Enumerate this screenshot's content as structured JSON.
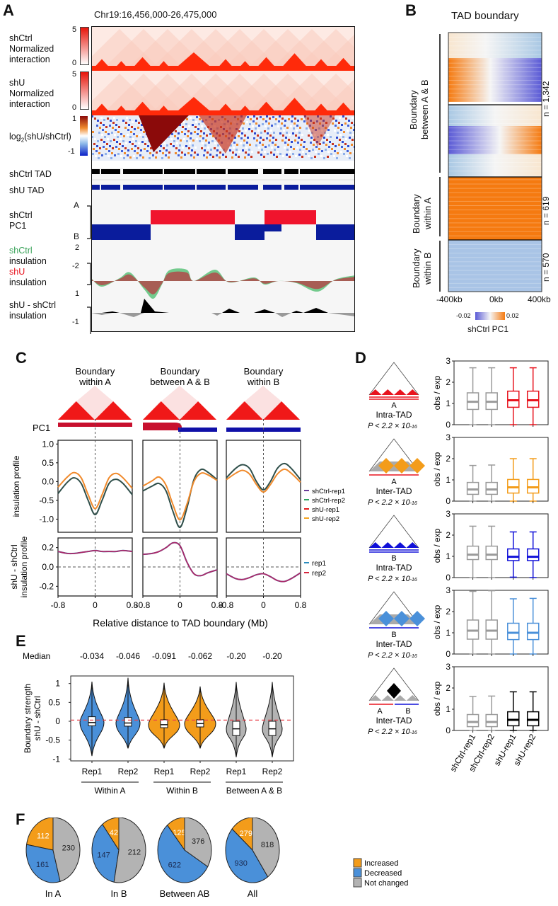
{
  "figure": {
    "panel_labels": [
      "A",
      "B",
      "C",
      "D",
      "E",
      "F"
    ]
  },
  "panel_a": {
    "region": "Chr19:16,456,000-26,475,000",
    "tracks": [
      {
        "label_lines": [
          "shCtrl",
          "Normalized",
          "interaction"
        ],
        "scale_max": "5",
        "scale_min": "0"
      },
      {
        "label_lines": [
          "shU",
          "Normalized",
          "interaction"
        ],
        "scale_max": "5",
        "scale_min": "0"
      },
      {
        "label_html": "log2(shU/shCtrl)",
        "label_main": "log",
        "label_sub": "2",
        "label_rest": "(shU/shCtrl)",
        "scale_max": "1",
        "scale_min": "-1"
      },
      {
        "label": "shCtrl TAD"
      },
      {
        "label": "shU TAD"
      },
      {
        "label_lines": [
          "shCtrl",
          "PC1"
        ],
        "scale_max": "A",
        "scale_min": "B"
      },
      {
        "label_lines": [
          "shCtrl",
          "insulation",
          "shU",
          "insulation"
        ],
        "scale_max": "2",
        "scale_min": "-2"
      },
      {
        "label_lines": [
          "shU - shCtrl",
          "insulation"
        ],
        "scale_max": "1",
        "scale_min": "-1"
      }
    ],
    "colors": {
      "interaction": "#ff2a0a",
      "pc1_a": "#f0142d",
      "pc1_b": "#0a1c9c",
      "tad_ctrl": "#000000",
      "tad_shu": "#0a1c9c",
      "ins_ctrl": "#5cc27a",
      "ins_shu": "#b04a4a"
    }
  },
  "panel_b": {
    "title": "TAD boundary",
    "groups": [
      {
        "label_lines": [
          "Boundary",
          "between A & B"
        ],
        "n": "n = 1,342"
      },
      {
        "label_lines": [
          "Boundary",
          "within A"
        ],
        "n": "n = 619"
      },
      {
        "label_lines": [
          "Boundary",
          "within B"
        ],
        "n": "n = 570"
      }
    ],
    "x_ticks": [
      "-400kb",
      "0kb",
      "400kb"
    ],
    "colorbar": {
      "min": "-0.02",
      "max": "0.02",
      "label": "shCtrl PC1"
    },
    "colors": {
      "low": "#5b5bd6",
      "mid": "#f5f5f5",
      "high": "#f57a10"
    }
  },
  "chart_data": [
    {
      "id": "panel_c_insulation",
      "type": "line",
      "panels": [
        "Boundary within A",
        "Boundary between A & B",
        "Boundary within B"
      ],
      "panel_title_lines": [
        [
          "Boundary",
          "within A"
        ],
        [
          "Boundary",
          "between A & B"
        ],
        [
          "Boundary",
          "within B"
        ]
      ],
      "pc1_label": "PC1",
      "ylabel": "insulation profile",
      "ylim": [
        -1.35,
        1.1
      ],
      "y_ticks": [
        "1.0",
        "0.5",
        "0.0",
        "-0.5",
        "-1.0"
      ],
      "y_tick_values": [
        1.0,
        0.5,
        0.0,
        -0.5,
        -1.0
      ],
      "x": [
        -0.8,
        -0.6,
        -0.45,
        -0.3,
        -0.15,
        0,
        0.15,
        0.3,
        0.45,
        0.6,
        0.8
      ],
      "series": [
        {
          "name": "shCtrl",
          "color": "#2f4f4a",
          "values_by_panel": [
            [
              -0.32,
              -0.02,
              0.1,
              -0.05,
              -0.5,
              -0.88,
              -0.5,
              -0.05,
              0.06,
              -0.05,
              -0.35
            ],
            [
              -0.25,
              -0.12,
              -0.05,
              -0.25,
              -0.8,
              -1.22,
              -0.7,
              0.05,
              0.32,
              0.25,
              0.05
            ],
            [
              0.1,
              0.35,
              0.45,
              0.35,
              0.0,
              -0.22,
              0.0,
              0.35,
              0.48,
              0.35,
              0.05
            ]
          ]
        },
        {
          "name": "shU",
          "color": "#f08a2c",
          "values_by_panel": [
            [
              -0.15,
              0.12,
              0.24,
              0.1,
              -0.35,
              -0.72,
              -0.35,
              0.1,
              0.22,
              0.1,
              -0.18
            ],
            [
              -0.12,
              0.02,
              0.12,
              -0.1,
              -0.62,
              -1.02,
              -0.6,
              0.0,
              0.22,
              0.18,
              0.03
            ],
            [
              0.05,
              0.22,
              0.3,
              0.2,
              -0.08,
              -0.28,
              -0.08,
              0.2,
              0.33,
              0.22,
              -0.02
            ]
          ]
        }
      ],
      "legend": [
        {
          "label": "shCtrl-rep1",
          "color": "#6a3d9a"
        },
        {
          "label": "shCtrl-rep2",
          "color": "#2ca25f"
        },
        {
          "label": "shU-rep1",
          "color": "#e31a1c"
        },
        {
          "label": "shU-rep2",
          "color": "#f5a623"
        }
      ]
    },
    {
      "id": "panel_c_difference",
      "type": "line",
      "ylabel_lines": [
        "shU - shCtrl",
        "insulation profile"
      ],
      "ylim": [
        -0.3,
        0.3
      ],
      "y_ticks": [
        "0.2",
        "0.0",
        "-0.2"
      ],
      "y_tick_values": [
        0.2,
        0.0,
        -0.2
      ],
      "x_ticks": [
        "-0.8",
        "0",
        "0.8"
      ],
      "x_tick_values": [
        -0.8,
        0,
        0.8
      ],
      "xlabel": "Relative distance to TAD boundary (Mb)",
      "x": [
        -0.8,
        -0.6,
        -0.45,
        -0.3,
        -0.15,
        0,
        0.15,
        0.3,
        0.45,
        0.6,
        0.8
      ],
      "values_by_panel": [
        [
          0.16,
          0.14,
          0.14,
          0.15,
          0.16,
          0.17,
          0.16,
          0.16,
          0.16,
          0.17,
          0.16
        ],
        [
          0.13,
          0.14,
          0.16,
          0.2,
          0.25,
          0.22,
          0.05,
          -0.07,
          -0.09,
          -0.06,
          -0.03
        ],
        [
          -0.07,
          -0.12,
          -0.13,
          -0.11,
          -0.08,
          -0.07,
          -0.1,
          -0.14,
          -0.15,
          -0.12,
          -0.06
        ]
      ],
      "legend": [
        {
          "label": "rep1",
          "color": "#2b8cbe"
        },
        {
          "label": "rep2",
          "color": "#d7263d"
        }
      ]
    },
    {
      "id": "panel_d_boxplots",
      "type": "bar",
      "ylabel": "obs / exp",
      "ylim": [
        0,
        3
      ],
      "y_ticks": [
        "0",
        "1",
        "2",
        "3"
      ],
      "categories": [
        "shCtrl-rep1",
        "shCtrl-rep2",
        "shU-rep1",
        "shU-rep2"
      ],
      "p_value": "P < 2.2 × 10",
      "p_exp": "-16",
      "rows": [
        {
          "compartment": "A",
          "type": "Intra-TAD",
          "color": "#e8141e",
          "boxes": [
            [
              0,
              0.72,
              1.08,
              1.5,
              2.68
            ],
            [
              0,
              0.72,
              1.08,
              1.5,
              2.68
            ],
            [
              0,
              0.82,
              1.15,
              1.58,
              2.68
            ],
            [
              0,
              0.82,
              1.15,
              1.58,
              2.68
            ]
          ]
        },
        {
          "compartment": "A",
          "type": "Inter-TAD",
          "color": "#f39c1a",
          "boxes": [
            [
              0,
              0.32,
              0.55,
              0.88,
              1.68
            ],
            [
              0,
              0.32,
              0.55,
              0.88,
              1.7
            ],
            [
              0,
              0.38,
              0.65,
              1.02,
              2.0
            ],
            [
              0,
              0.38,
              0.65,
              1.02,
              2.0
            ]
          ]
        },
        {
          "compartment": "B",
          "type": "Intra-TAD",
          "color": "#1010d8",
          "boxes": [
            [
              0,
              0.85,
              1.08,
              1.48,
              2.42
            ],
            [
              0,
              0.85,
              1.08,
              1.48,
              2.42
            ],
            [
              0.02,
              0.8,
              0.98,
              1.35,
              2.15
            ],
            [
              0,
              0.8,
              0.98,
              1.35,
              2.15
            ]
          ]
        },
        {
          "compartment": "B",
          "type": "Inter-TAD",
          "color": "#4a90d9",
          "boxes": [
            [
              0,
              0.7,
              1.1,
              1.6,
              2.95
            ],
            [
              0,
              0.7,
              1.1,
              1.6,
              2.98
            ],
            [
              0,
              0.68,
              1.0,
              1.45,
              2.6
            ],
            [
              0,
              0.68,
              1.0,
              1.45,
              2.62
            ]
          ]
        },
        {
          "compartment": "A/B",
          "type": "Inter-TAD",
          "color": "#000000",
          "boxes": [
            [
              0,
              0.18,
              0.4,
              0.75,
              1.6
            ],
            [
              0,
              0.18,
              0.4,
              0.75,
              1.62
            ],
            [
              0,
              0.22,
              0.5,
              0.88,
              1.82
            ],
            [
              0,
              0.22,
              0.5,
              0.88,
              1.82
            ]
          ]
        }
      ],
      "ctrl_color": "#9a9a9a"
    },
    {
      "id": "panel_e_violin",
      "type": "scatter",
      "ylabel_lines": [
        "Boundary strength",
        "shU - shCtrl"
      ],
      "ylim": [
        -1.05,
        1.2
      ],
      "y_ticks": [
        "1",
        "0.5",
        "0",
        "-0.5",
        "-1"
      ],
      "y_tick_values": [
        1,
        0.5,
        0,
        -0.5,
        -1
      ],
      "median_label": "Median",
      "medians": [
        "-0.034",
        "-0.046",
        "-0.091",
        "-0.062",
        "-0.20",
        "-0.20"
      ],
      "categories": [
        "Rep1",
        "Rep2",
        "Rep1",
        "Rep2",
        "Rep1",
        "Rep2"
      ],
      "groups": [
        {
          "label": "Within A",
          "color": "#4a90d9"
        },
        {
          "label": "Within B",
          "color": "#f39c1a"
        },
        {
          "label": "Between A & B",
          "color": "#b3b3b3"
        }
      ],
      "violins": [
        {
          "min": -0.92,
          "q1": -0.12,
          "median": -0.034,
          "q3": 0.12,
          "max": 1.05
        },
        {
          "min": -0.72,
          "q1": -0.13,
          "median": -0.046,
          "q3": 0.1,
          "max": 1.15
        },
        {
          "min": -0.72,
          "q1": -0.17,
          "median": -0.091,
          "q3": 0.04,
          "max": 1.02
        },
        {
          "min": -0.72,
          "q1": -0.15,
          "median": -0.062,
          "q3": 0.04,
          "max": 0.92
        },
        {
          "min": -0.95,
          "q1": -0.38,
          "median": -0.2,
          "q3": 0.0,
          "max": 1.04
        },
        {
          "min": -0.95,
          "q1": -0.38,
          "median": -0.2,
          "q3": 0.0,
          "max": 1.04
        }
      ],
      "reference_line": 0.03
    },
    {
      "id": "panel_f_pies",
      "type": "pie",
      "legend": [
        {
          "label": "Increased",
          "color": "#f39c1a"
        },
        {
          "label": "Decreased",
          "color": "#4a90d9"
        },
        {
          "label": "Not changed",
          "color": "#b3b3b3"
        }
      ],
      "pies": [
        {
          "title": "In A",
          "increased": 112,
          "decreased": 161,
          "not_changed": 230
        },
        {
          "title": "In B",
          "increased": 42,
          "decreased": 147,
          "not_changed": 212
        },
        {
          "title": "Between AB",
          "increased": 125,
          "decreased": 622,
          "not_changed": 376
        },
        {
          "title": "All",
          "increased": 279,
          "decreased": 930,
          "not_changed": 818
        }
      ]
    }
  ]
}
